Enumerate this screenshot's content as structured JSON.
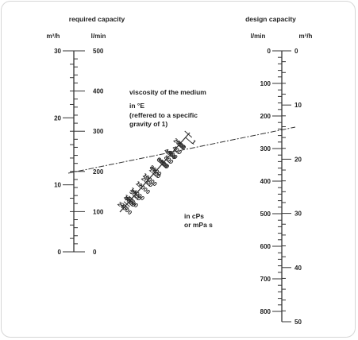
{
  "required": {
    "title": "required capacity",
    "unit_m3h": "m³/h",
    "unit_lmin": "l/min",
    "m3h_labels": [
      "0",
      "10",
      "20",
      "30"
    ],
    "lmin_labels": [
      "0",
      "100",
      "200",
      "300",
      "400",
      "500"
    ]
  },
  "design": {
    "title": "design capacity",
    "unit_lmin": "l/min",
    "unit_m3h": "m³/h",
    "lmin_labels": [
      "0",
      "100",
      "200",
      "300",
      "400",
      "500",
      "600",
      "700",
      "800"
    ],
    "m3h_labels": [
      "0",
      "10",
      "20",
      "30",
      "40",
      "50"
    ]
  },
  "viscosity": {
    "title": "viscosity of the medium",
    "unit_e": "in °E",
    "unit_note_1": "(reffered to a specific",
    "unit_note_2": "gravity of 1)",
    "cps_1": "in cPs",
    "cps_2": "or mPa s",
    "e_labels": [
      "1",
      "200",
      "400",
      "600",
      "800",
      "1000",
      "1500",
      "2000",
      "3000",
      "4000"
    ],
    "cps_labels": [
      "2000",
      "4000",
      "6000",
      "8000",
      "10000",
      "12000",
      "14000",
      "18000",
      "24000"
    ]
  },
  "colors": {
    "line": "#333333",
    "frame": "#d6d6d6"
  }
}
